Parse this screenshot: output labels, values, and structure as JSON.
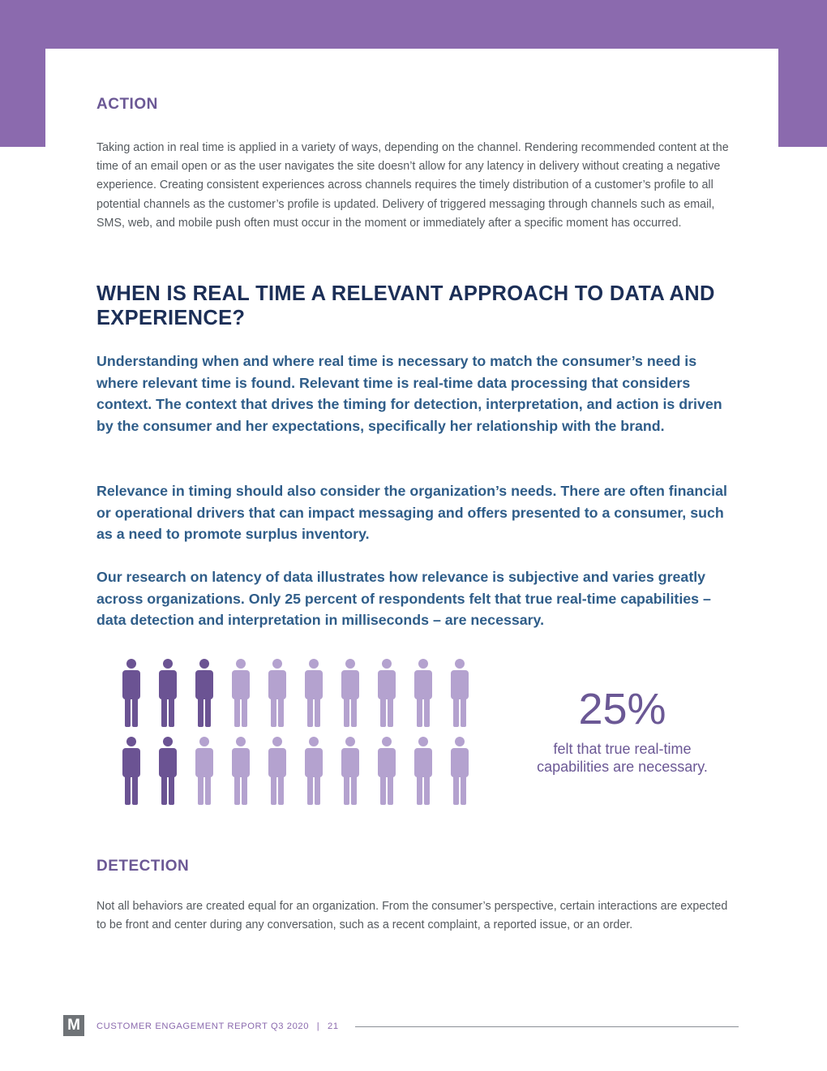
{
  "colors": {
    "band": "#8b6aae",
    "section_heading": "#6b5895",
    "navy": "#1c2f57",
    "lead_text": "#2f5d89",
    "figure_filled": "#6b5393",
    "figure_empty": "#b4a2cf",
    "stat_text": "#6b5895",
    "footer_text": "#8b6aae",
    "rule": "#8a8f96"
  },
  "action": {
    "heading": "ACTION",
    "body": "Taking action in real time is applied in a variety of ways, depending on the channel. Rendering recommended content at the time of an email open or as the user navigates the site doesn’t allow for any latency  in delivery without creating a negative experience. Creating consistent experiences across channels requires the timely distribution of a customer’s profile to all potential channels as the customer’s profile is updated. Delivery of triggered messaging through channels such as email, SMS, web, and mobile push often must occur in the moment or immediately after a specific moment has occurred."
  },
  "relevance": {
    "heading": "WHEN IS REAL TIME A RELEVANT APPROACH TO DATA AND EXPERIENCE?",
    "paragraphs": [
      "Understanding when and where real time is necessary to match the consumer’s need is where relevant time is found. Relevant time is real-time data processing that considers context. The context that drives the timing for detection, interpretation, and action is driven by the consumer and her expectations, specifically her relationship with the brand.",
      "Relevance in timing should also consider the organization’s needs. There are often financial or operational drivers that can impact messaging and offers presented to a consumer, such as a need to promote surplus inventory.",
      "Our research on latency of data illustrates how relevance is subjective and varies greatly across organizations. Only 25 percent of respondents felt that true real-time capabilities – data detection and interpretation in milliseconds – are necessary."
    ]
  },
  "stat": {
    "value": "25%",
    "caption": "felt that true real-time capabilities are necessary.",
    "figure": {
      "icon": "person-icon",
      "rows": [
        [
          true,
          true,
          true,
          false,
          false,
          false,
          false,
          false,
          false,
          false
        ],
        [
          true,
          true,
          false,
          false,
          false,
          false,
          false,
          false,
          false,
          false
        ]
      ]
    }
  },
  "detection": {
    "heading": "DETECTION",
    "body": "Not all behaviors are created equal for an organization. From the consumer’s perspective, certain interactions are expected to be front and center during any conversation, such as a recent complaint, a reported issue, or an order."
  },
  "footer": {
    "logo_letter": "M",
    "report_title": "CUSTOMER ENGAGEMENT REPORT",
    "period": "Q3 2020",
    "separator": "|",
    "page_number": "21"
  }
}
